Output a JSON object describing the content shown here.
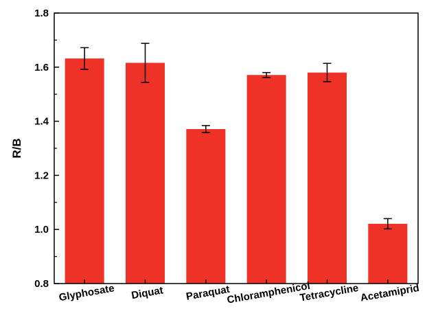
{
  "chart_data": {
    "type": "bar",
    "categories": [
      "Glyphosate",
      "Diquat",
      "Paraquat",
      "Chloramphenicol",
      "Tetracycline",
      "Acetamiprid"
    ],
    "values": [
      1.632,
      1.616,
      1.371,
      1.571,
      1.58,
      1.021
    ],
    "errors": [
      0.04,
      0.072,
      0.013,
      0.009,
      0.034,
      0.019
    ],
    "title": "",
    "xlabel": "",
    "ylabel": "R/B",
    "ylim": [
      0.8,
      1.8
    ],
    "yticks": [
      "0.8",
      "1.0",
      "1.2",
      "1.4",
      "1.6",
      "1.8"
    ],
    "grid": false,
    "bar_color": "#ee3228",
    "error_bar_color": "#000000"
  }
}
